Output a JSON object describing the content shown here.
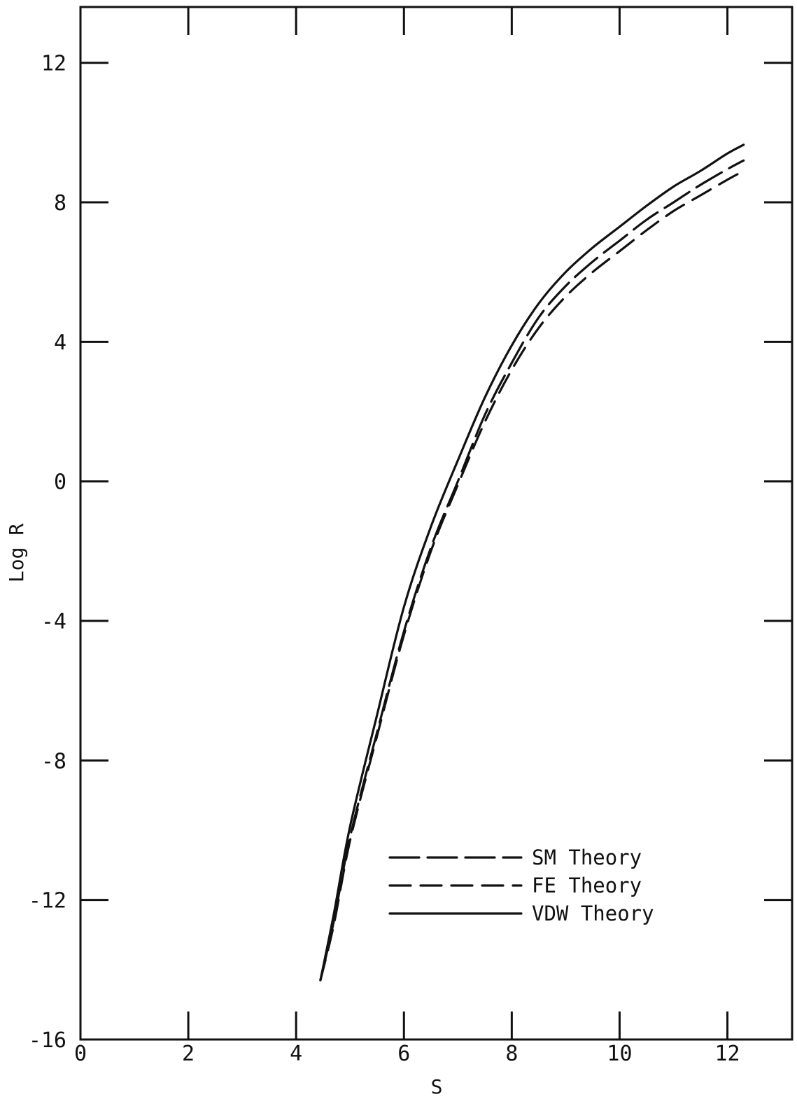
{
  "chart_data": {
    "type": "line",
    "title": "",
    "xlabel": "S",
    "ylabel": "Log R",
    "xlim": [
      0,
      13.2
    ],
    "ylim": [
      -16,
      13.6
    ],
    "x_ticks": [
      0,
      2,
      4,
      6,
      8,
      10,
      12
    ],
    "y_ticks": [
      -16,
      -12,
      -8,
      -4,
      0,
      4,
      8,
      12
    ],
    "x_tick_labels": [
      "0",
      "2",
      "4",
      "6",
      "8",
      "10",
      "12"
    ],
    "y_tick_labels": [
      "-16",
      "-12",
      "-8",
      "-4",
      "0",
      "4",
      "8",
      "12"
    ],
    "grid": false,
    "legend_position": "lower-right",
    "series": [
      {
        "name": "SM Theory",
        "style": "long-dash",
        "x": [
          4.45,
          4.7,
          5.0,
          5.5,
          6.0,
          6.5,
          7.0,
          7.5,
          8.0,
          8.5,
          9.0,
          9.5,
          10.0,
          10.5,
          11.0,
          11.5,
          12.0,
          12.3
        ],
        "y": [
          -14.3,
          -12.6,
          -10.2,
          -7.2,
          -4.3,
          -1.9,
          0.0,
          1.9,
          3.4,
          4.7,
          5.6,
          6.3,
          6.9,
          7.5,
          8.0,
          8.5,
          8.95,
          9.2
        ]
      },
      {
        "name": "FE Theory",
        "style": "dash",
        "x": [
          4.45,
          4.7,
          5.0,
          5.5,
          6.0,
          6.5,
          7.0,
          7.5,
          8.0,
          8.5,
          9.0,
          9.5,
          10.0,
          10.5,
          11.0,
          11.5,
          12.0,
          12.3
        ],
        "y": [
          -14.3,
          -12.7,
          -10.3,
          -7.3,
          -4.4,
          -2.0,
          -0.1,
          1.7,
          3.2,
          4.4,
          5.3,
          6.0,
          6.6,
          7.2,
          7.75,
          8.2,
          8.65,
          8.9
        ]
      },
      {
        "name": "VDW Theory",
        "style": "solid",
        "x": [
          4.45,
          4.7,
          5.0,
          5.5,
          6.0,
          6.5,
          7.0,
          7.5,
          8.0,
          8.5,
          9.0,
          9.5,
          10.0,
          10.5,
          11.0,
          11.5,
          12.0,
          12.3
        ],
        "y": [
          -14.3,
          -12.4,
          -9.9,
          -6.7,
          -3.6,
          -1.3,
          0.6,
          2.4,
          3.9,
          5.1,
          6.0,
          6.7,
          7.3,
          7.9,
          8.45,
          8.9,
          9.4,
          9.65
        ]
      }
    ]
  }
}
